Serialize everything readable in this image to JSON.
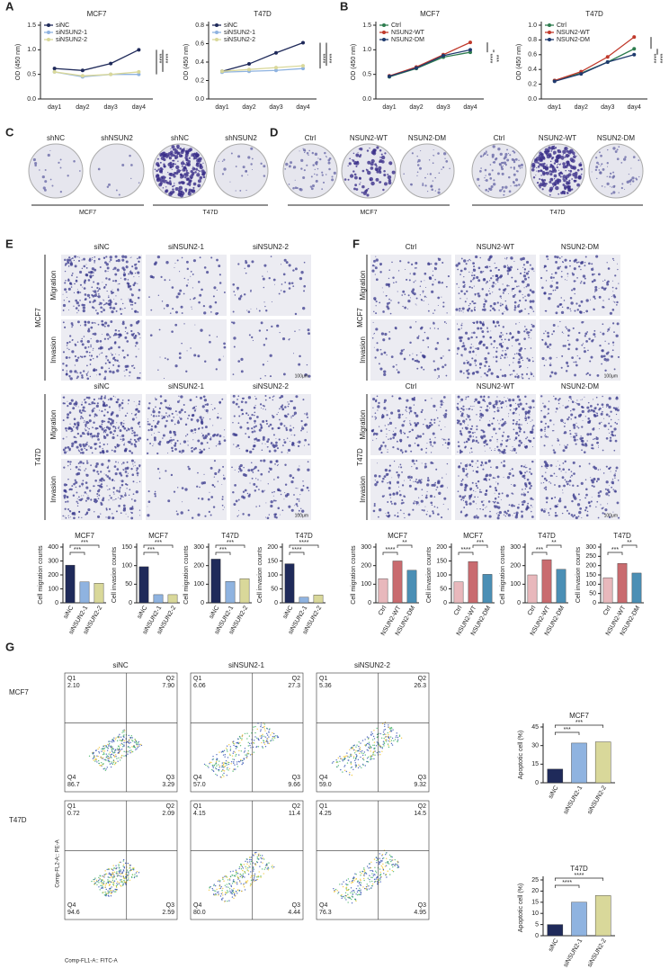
{
  "chart_data": [
    {
      "type": "line",
      "title": "MCF7",
      "ylabel": "OD (450 nm)",
      "categories": [
        "day1",
        "day2",
        "day3",
        "day4"
      ],
      "ylim": [
        0,
        1.5
      ],
      "yticks": [
        {
          "value": 0,
          "label": "0.0"
        },
        0.5,
        {
          "value": 1,
          "label": "1.0"
        },
        1.5
      ],
      "series": [
        {
          "name": "siNC",
          "color": "#1f2a5a",
          "values": [
            0.62,
            0.58,
            0.72,
            1.0
          ]
        },
        {
          "name": "siNSUN2-1",
          "color": "#8fb3e0",
          "values": [
            0.55,
            0.45,
            0.5,
            0.5
          ]
        },
        {
          "name": "siNSUN2-2",
          "color": "#d9d89a",
          "values": [
            0.55,
            0.47,
            0.5,
            0.55
          ]
        }
      ],
      "annotations": [
        "****",
        "****"
      ]
    },
    {
      "type": "line",
      "title": "T47D",
      "ylabel": "OD (450 nm)",
      "categories": [
        "day1",
        "day2",
        "day3",
        "day4"
      ],
      "ylim": [
        0,
        0.8
      ],
      "yticks": [
        {
          "value": 0,
          "label": "0.0"
        },
        0.2,
        0.4,
        0.6,
        0.8
      ],
      "series": [
        {
          "name": "siNC",
          "color": "#1f2a5a",
          "values": [
            0.3,
            0.38,
            0.5,
            0.61
          ]
        },
        {
          "name": "siNSUN2-1",
          "color": "#8fb3e0",
          "values": [
            0.29,
            0.3,
            0.31,
            0.33
          ]
        },
        {
          "name": "siNSUN2-2",
          "color": "#d9d89a",
          "values": [
            0.3,
            0.32,
            0.34,
            0.36
          ]
        }
      ],
      "annotations": [
        "****",
        "****"
      ]
    },
    {
      "type": "line",
      "title": "MCF7",
      "ylabel": "OD (450 nm)",
      "categories": [
        "day1",
        "day2",
        "day3",
        "day4"
      ],
      "ylim": [
        0,
        1.5
      ],
      "yticks": [
        {
          "value": 0,
          "label": "0.0"
        },
        0.5,
        {
          "value": 1,
          "label": "1.0"
        },
        1.5
      ],
      "series": [
        {
          "name": "Ctrl",
          "color": "#2e7d4f",
          "values": [
            0.45,
            0.62,
            0.85,
            0.95
          ]
        },
        {
          "name": "NSUN2-WT",
          "color": "#c0392b",
          "values": [
            0.47,
            0.65,
            0.9,
            1.15
          ]
        },
        {
          "name": "NSUN2-DM",
          "color": "#1f3a6e",
          "values": [
            0.46,
            0.63,
            0.88,
            1.0
          ]
        }
      ],
      "annotations": [
        "****",
        "***"
      ]
    },
    {
      "type": "line",
      "title": "T47D",
      "ylabel": "OD (450 nm)",
      "categories": [
        "day1",
        "day2",
        "day3",
        "day4"
      ],
      "ylim": [
        0,
        1
      ],
      "yticks": [
        {
          "value": 0,
          "label": "0.0"
        },
        0.2,
        0.4,
        0.6,
        0.8,
        {
          "value": 1,
          "label": "1.0"
        }
      ],
      "series": [
        {
          "name": "Ctrl",
          "color": "#2e7d4f",
          "values": [
            0.25,
            0.35,
            0.5,
            0.68
          ]
        },
        {
          "name": "NSUN2-WT",
          "color": "#c0392b",
          "values": [
            0.25,
            0.37,
            0.57,
            0.84
          ]
        },
        {
          "name": "NSUN2-DM",
          "color": "#1f3a6e",
          "values": [
            0.24,
            0.34,
            0.5,
            0.6
          ]
        }
      ],
      "annotations": [
        "****",
        "****"
      ]
    },
    {
      "type": "bar",
      "title": "MCF7",
      "ylabel": "Cell migration counts",
      "categories": [
        "siNC",
        "siNSUN2-1",
        "siNSUN2-2"
      ],
      "colors": [
        "#1f2a5a",
        "#8fb3e0",
        "#d9d89a"
      ],
      "values": [
        270,
        150,
        140
      ],
      "ylim": [
        0,
        400
      ],
      "yticks": [
        0,
        100,
        200,
        300,
        400
      ],
      "annotations": [
        "***",
        "***"
      ]
    },
    {
      "type": "bar",
      "title": "MCF7",
      "ylabel": "Cell invasion counts",
      "categories": [
        "siNC",
        "siNSUN2-1",
        "siNSUN2-2"
      ],
      "colors": [
        "#1f2a5a",
        "#8fb3e0",
        "#d9d89a"
      ],
      "values": [
        97,
        22,
        22
      ],
      "ylim": [
        0,
        150
      ],
      "yticks": [
        0,
        50,
        100,
        150
      ],
      "annotations": [
        "***",
        "***"
      ]
    },
    {
      "type": "bar",
      "title": "T47D",
      "ylabel": "Cell migration counts",
      "categories": [
        "siNC",
        "siNSUN2-1",
        "siNSUN2-2"
      ],
      "colors": [
        "#1f2a5a",
        "#8fb3e0",
        "#d9d89a"
      ],
      "values": [
        235,
        115,
        130
      ],
      "ylim": [
        0,
        300
      ],
      "yticks": [
        0,
        100,
        200,
        300
      ],
      "annotations": [
        "***",
        "***"
      ]
    },
    {
      "type": "bar",
      "title": "T47D",
      "ylabel": "Cell invasion counts",
      "categories": [
        "siNC",
        "siNSUN2-1",
        "siNSUN2-2"
      ],
      "colors": [
        "#1f2a5a",
        "#8fb3e0",
        "#d9d89a"
      ],
      "values": [
        140,
        20,
        28
      ],
      "ylim": [
        0,
        200
      ],
      "yticks": [
        0,
        50,
        100,
        150,
        200
      ],
      "annotations": [
        "****",
        "****"
      ]
    },
    {
      "type": "bar",
      "title": "MCF7",
      "ylabel": "Cell migration counts",
      "categories": [
        "Ctrl",
        "NSUN2-WT",
        "NSUN2-DM"
      ],
      "colors": [
        "#e8b8bc",
        "#c96b6f",
        "#4b8fb5"
      ],
      "values": [
        130,
        225,
        175
      ],
      "ylim": [
        0,
        300
      ],
      "yticks": [
        0,
        100,
        200,
        300
      ],
      "annotations": [
        "****",
        "**"
      ]
    },
    {
      "type": "bar",
      "title": "MCF7",
      "ylabel": "Cell invasion counts",
      "categories": [
        "Ctrl",
        "NSUN2-WT",
        "NSUN2-DM"
      ],
      "colors": [
        "#e8b8bc",
        "#c96b6f",
        "#4b8fb5"
      ],
      "values": [
        75,
        148,
        102
      ],
      "ylim": [
        0,
        200
      ],
      "yticks": [
        0,
        50,
        100,
        150,
        200
      ],
      "annotations": [
        "****",
        "***"
      ]
    },
    {
      "type": "bar",
      "title": "T47D",
      "ylabel": "Cell migration counts",
      "categories": [
        "Ctrl",
        "NSUN2-WT",
        "NSUN2-DM"
      ],
      "colors": [
        "#e8b8bc",
        "#c96b6f",
        "#4b8fb5"
      ],
      "values": [
        150,
        232,
        180
      ],
      "ylim": [
        0,
        300
      ],
      "yticks": [
        0,
        100,
        200,
        300
      ],
      "annotations": [
        "***",
        "**"
      ]
    },
    {
      "type": "bar",
      "title": "T47D",
      "ylabel": "Cell invasion counts",
      "categories": [
        "Ctrl",
        "NSUN2-WT",
        "NSUN2-DM"
      ],
      "colors": [
        "#e8b8bc",
        "#c96b6f",
        "#4b8fb5"
      ],
      "values": [
        135,
        212,
        160
      ],
      "ylim": [
        0,
        300
      ],
      "yticks": [
        0,
        50,
        100,
        150,
        200,
        250,
        300
      ],
      "annotations": [
        "***",
        "**"
      ]
    },
    {
      "type": "bar",
      "title": "MCF7",
      "ylabel": "Apoptotic cell (%)",
      "categories": [
        "siNC",
        "siNSUN2-1",
        "siNSUN2-2"
      ],
      "colors": [
        "#1f2a5a",
        "#8fb3e0",
        "#d9d89a"
      ],
      "values": [
        11,
        32,
        33
      ],
      "ylim": [
        0,
        45
      ],
      "yticks": [
        0,
        15,
        30,
        45
      ],
      "annotations": [
        "***",
        "***"
      ]
    },
    {
      "type": "bar",
      "title": "T47D",
      "ylabel": "Apoptotic cell (%)",
      "categories": [
        "siNC",
        "siNSUN2-1",
        "siNSUN2-2"
      ],
      "colors": [
        "#1f2a5a",
        "#8fb3e0",
        "#d9d89a"
      ],
      "values": [
        5,
        15,
        18
      ],
      "ylim": [
        0,
        25
      ],
      "yticks": [
        0,
        5,
        10,
        15,
        20,
        25
      ],
      "annotations": [
        "****",
        "****"
      ]
    }
  ],
  "panels": {
    "letters": [
      "A",
      "B",
      "C",
      "D",
      "E",
      "F",
      "G"
    ],
    "C": {
      "cols": [
        "shNC",
        "shNSUN2",
        "shNC",
        "shNSUN2"
      ],
      "groups": [
        "MCF7",
        "T47D"
      ]
    },
    "D": {
      "cols": [
        "Ctrl",
        "NSUN2-WT",
        "NSUN2-DM",
        "Ctrl",
        "NSUN2-WT",
        "NSUN2-DM"
      ],
      "groups": [
        "MCF7",
        "T47D"
      ]
    },
    "E": {
      "cols": [
        "siNC",
        "siNSUN2-1",
        "siNSUN2-2"
      ],
      "rows": [
        "Migration",
        "Invasion"
      ],
      "groups": [
        "MCF7",
        "T47D"
      ],
      "scale": "100μm"
    },
    "F": {
      "cols": [
        "Ctrl",
        "NSUN2-WT",
        "NSUN2-DM"
      ],
      "rows": [
        "Migration",
        "Invasion"
      ],
      "groups": [
        "MCF7",
        "T47D"
      ],
      "scale": "100μm"
    },
    "G": {
      "cols": [
        "siNC",
        "siNSUN2-1",
        "siNSUN2-2"
      ],
      "rows": [
        "MCF7",
        "T47D"
      ],
      "quadrants": [
        "Q1",
        "Q2",
        "Q3",
        "Q4"
      ],
      "plots": [
        [
          [
            "2.10",
            "7.90",
            "3.29",
            "86.7"
          ],
          [
            "6.06",
            "27.3",
            "9.66",
            "57.0"
          ],
          [
            "5.36",
            "26.3",
            "9.32",
            "59.0"
          ]
        ],
        [
          [
            "0.72",
            "2.09",
            "2.59",
            "94.6"
          ],
          [
            "4.15",
            "11.4",
            "4.44",
            "80.0"
          ],
          [
            "4.25",
            "14.5",
            "4.95",
            "76.3"
          ]
        ]
      ],
      "ylabel": "Comp-FL2-A:: PE-A",
      "xlabel": "Comp-FL1-A:: FITC-A"
    }
  }
}
